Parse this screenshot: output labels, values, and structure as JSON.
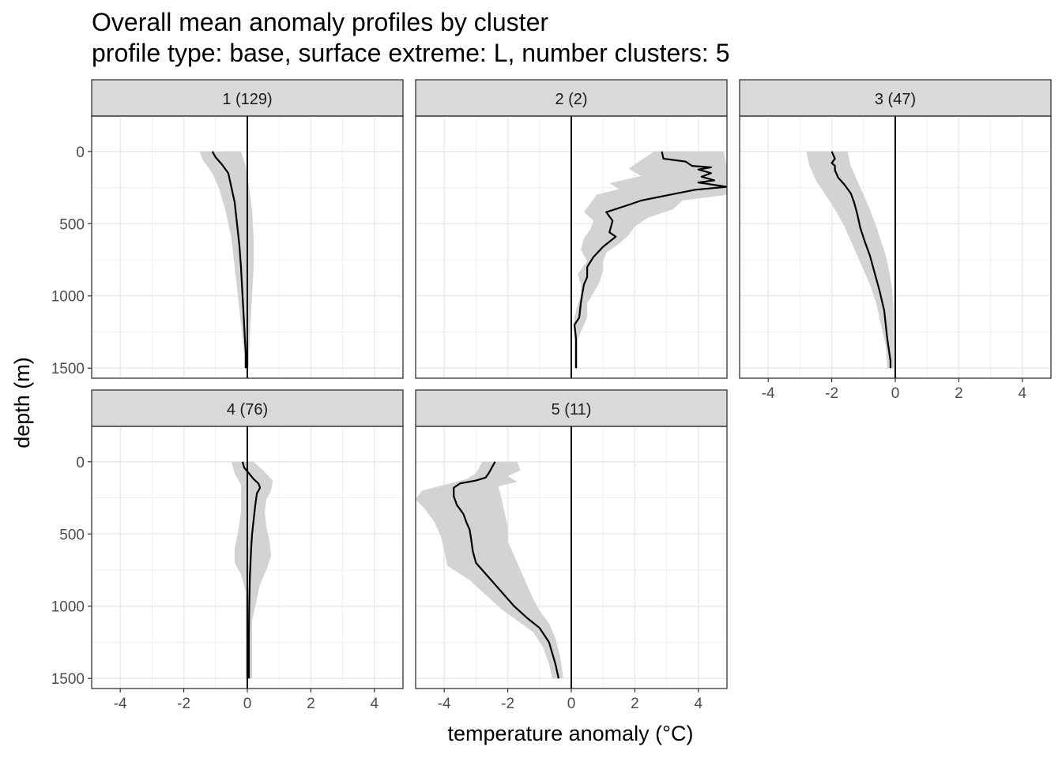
{
  "title_line_1": "Overall mean anomaly profiles by cluster",
  "title_line_2": "profile type: base, surface extreme: L, number clusters: 5",
  "colors": {
    "strip_bg": "#d9d9d9",
    "ribbon": "#d3d3d3",
    "grid": "#ebebeb",
    "line": "#000000",
    "border": "#333333"
  },
  "chart_data": {
    "type": "line",
    "xlabel": "temperature anomaly (°C)",
    "ylabel": "depth (m)",
    "xlim": [
      -4.9,
      4.9
    ],
    "ylim": [
      1570,
      -245
    ],
    "x_ticks": [
      -4,
      -2,
      0,
      2,
      4
    ],
    "x_tick_labels": [
      "-4",
      "-2",
      "0",
      "2",
      "4"
    ],
    "y_ticks": [
      0,
      500,
      1000,
      1500
    ],
    "y_tick_labels": [
      "0",
      "500",
      "1000",
      "1500"
    ],
    "reference_line_x": 0,
    "panels": [
      {
        "label": "1 (129)",
        "mean": [
          [
            -1.1,
            0
          ],
          [
            -1.0,
            40
          ],
          [
            -0.8,
            90
          ],
          [
            -0.6,
            150
          ],
          [
            -0.5,
            250
          ],
          [
            -0.4,
            350
          ],
          [
            -0.35,
            450
          ],
          [
            -0.3,
            550
          ],
          [
            -0.25,
            650
          ],
          [
            -0.2,
            800
          ],
          [
            -0.15,
            1000
          ],
          [
            -0.1,
            1200
          ],
          [
            -0.05,
            1400
          ],
          [
            -0.05,
            1500
          ]
        ],
        "lower": [
          [
            -1.5,
            0
          ],
          [
            -1.4,
            60
          ],
          [
            -1.1,
            150
          ],
          [
            -0.9,
            250
          ],
          [
            -0.7,
            400
          ],
          [
            -0.5,
            600
          ],
          [
            -0.4,
            800
          ],
          [
            -0.3,
            1000
          ],
          [
            -0.2,
            1200
          ],
          [
            -0.1,
            1400
          ],
          [
            -0.1,
            1500
          ]
        ],
        "upper": [
          [
            -0.2,
            0
          ],
          [
            -0.05,
            100
          ],
          [
            0.05,
            250
          ],
          [
            0.15,
            400
          ],
          [
            0.2,
            600
          ],
          [
            0.2,
            800
          ],
          [
            0.15,
            1000
          ],
          [
            0.1,
            1200
          ],
          [
            0.05,
            1400
          ],
          [
            0.05,
            1500
          ]
        ]
      },
      {
        "label": "2 (2)",
        "mean": [
          [
            2.85,
            0
          ],
          [
            2.9,
            50
          ],
          [
            3.6,
            70
          ],
          [
            3.8,
            100
          ],
          [
            4.4,
            110
          ],
          [
            4.0,
            125
          ],
          [
            4.4,
            150
          ],
          [
            4.1,
            175
          ],
          [
            4.5,
            200
          ],
          [
            4.0,
            215
          ],
          [
            4.9,
            245
          ],
          [
            3.9,
            265
          ],
          [
            3.1,
            300
          ],
          [
            2.2,
            340
          ],
          [
            1.8,
            370
          ],
          [
            1.1,
            420
          ],
          [
            1.3,
            480
          ],
          [
            1.2,
            560
          ],
          [
            1.4,
            590
          ],
          [
            1.0,
            660
          ],
          [
            0.7,
            730
          ],
          [
            0.5,
            800
          ],
          [
            0.5,
            870
          ],
          [
            0.4,
            920
          ],
          [
            0.35,
            980
          ],
          [
            0.3,
            1050
          ],
          [
            0.25,
            1150
          ],
          [
            0.1,
            1200
          ],
          [
            0.15,
            1300
          ],
          [
            0.15,
            1500
          ]
        ],
        "lower": [
          [
            2.6,
            0
          ],
          [
            1.8,
            120
          ],
          [
            2.2,
            170
          ],
          [
            1.2,
            220
          ],
          [
            1.5,
            260
          ],
          [
            0.8,
            300
          ],
          [
            0.6,
            360
          ],
          [
            0.4,
            420
          ],
          [
            0.7,
            480
          ],
          [
            0.6,
            540
          ],
          [
            0.4,
            600
          ],
          [
            0.3,
            680
          ],
          [
            0.5,
            760
          ],
          [
            0.2,
            850
          ],
          [
            0.3,
            920
          ],
          [
            0.3,
            1000
          ],
          [
            0.2,
            1060
          ],
          [
            0.1,
            1150
          ],
          [
            0.1,
            1300
          ],
          [
            0.1,
            1500
          ]
        ],
        "upper": [
          [
            4.8,
            0
          ],
          [
            4.9,
            120
          ],
          [
            4.9,
            220
          ],
          [
            4.9,
            300
          ],
          [
            3.5,
            340
          ],
          [
            3.2,
            400
          ],
          [
            2.4,
            460
          ],
          [
            2.0,
            520
          ],
          [
            1.8,
            580
          ],
          [
            1.5,
            640
          ],
          [
            1.1,
            700
          ],
          [
            1.0,
            760
          ],
          [
            1.0,
            820
          ],
          [
            0.9,
            900
          ],
          [
            0.7,
            980
          ],
          [
            0.5,
            1050
          ],
          [
            0.5,
            1150
          ],
          [
            0.2,
            1300
          ],
          [
            0.2,
            1500
          ]
        ]
      },
      {
        "label": "3 (47)",
        "mean": [
          [
            -2.0,
            0
          ],
          [
            -1.9,
            50
          ],
          [
            -2.0,
            80
          ],
          [
            -1.9,
            100
          ],
          [
            -1.9,
            130
          ],
          [
            -1.8,
            180
          ],
          [
            -1.6,
            230
          ],
          [
            -1.4,
            290
          ],
          [
            -1.3,
            350
          ],
          [
            -1.2,
            430
          ],
          [
            -1.1,
            530
          ],
          [
            -0.95,
            630
          ],
          [
            -0.8,
            720
          ],
          [
            -0.7,
            800
          ],
          [
            -0.6,
            880
          ],
          [
            -0.5,
            960
          ],
          [
            -0.35,
            1100
          ],
          [
            -0.25,
            1300
          ],
          [
            -0.15,
            1450
          ],
          [
            -0.15,
            1500
          ]
        ],
        "lower": [
          [
            -2.8,
            0
          ],
          [
            -2.7,
            100
          ],
          [
            -2.5,
            200
          ],
          [
            -2.2,
            300
          ],
          [
            -1.9,
            400
          ],
          [
            -1.6,
            520
          ],
          [
            -1.4,
            620
          ],
          [
            -1.2,
            720
          ],
          [
            -1.0,
            820
          ],
          [
            -0.8,
            920
          ],
          [
            -0.6,
            1050
          ],
          [
            -0.45,
            1200
          ],
          [
            -0.3,
            1350
          ],
          [
            -0.25,
            1500
          ]
        ],
        "upper": [
          [
            -1.5,
            0
          ],
          [
            -1.4,
            100
          ],
          [
            -1.2,
            200
          ],
          [
            -1.0,
            300
          ],
          [
            -0.8,
            400
          ],
          [
            -0.6,
            520
          ],
          [
            -0.45,
            620
          ],
          [
            -0.3,
            720
          ],
          [
            -0.2,
            820
          ],
          [
            -0.1,
            950
          ],
          [
            -0.05,
            1100
          ],
          [
            -0.05,
            1300
          ],
          [
            -0.05,
            1500
          ]
        ]
      },
      {
        "label": "4 (76)",
        "mean": [
          [
            -0.15,
            0
          ],
          [
            -0.1,
            40
          ],
          [
            0.05,
            80
          ],
          [
            0.2,
            120
          ],
          [
            0.35,
            150
          ],
          [
            0.4,
            180
          ],
          [
            0.3,
            220
          ],
          [
            0.25,
            300
          ],
          [
            0.2,
            400
          ],
          [
            0.15,
            500
          ],
          [
            0.12,
            600
          ],
          [
            0.1,
            700
          ],
          [
            0.08,
            800
          ],
          [
            0.06,
            1000
          ],
          [
            0.05,
            1200
          ],
          [
            0.05,
            1400
          ],
          [
            0.05,
            1500
          ]
        ],
        "lower": [
          [
            -0.5,
            0
          ],
          [
            -0.4,
            80
          ],
          [
            -0.2,
            160
          ],
          [
            -0.2,
            250
          ],
          [
            -0.2,
            350
          ],
          [
            -0.3,
            500
          ],
          [
            -0.4,
            600
          ],
          [
            -0.4,
            700
          ],
          [
            -0.2,
            780
          ],
          [
            -0.05,
            900
          ],
          [
            -0.05,
            1100
          ],
          [
            -0.05,
            1300
          ],
          [
            -0.05,
            1500
          ]
        ],
        "upper": [
          [
            0.2,
            0
          ],
          [
            0.5,
            60
          ],
          [
            0.8,
            130
          ],
          [
            0.75,
            200
          ],
          [
            0.6,
            260
          ],
          [
            0.55,
            350
          ],
          [
            0.6,
            450
          ],
          [
            0.7,
            550
          ],
          [
            0.75,
            650
          ],
          [
            0.6,
            750
          ],
          [
            0.4,
            850
          ],
          [
            0.3,
            950
          ],
          [
            0.15,
            1100
          ],
          [
            0.15,
            1300
          ],
          [
            0.15,
            1500
          ]
        ]
      },
      {
        "label": "5 (11)",
        "mean": [
          [
            -2.4,
            0
          ],
          [
            -2.5,
            40
          ],
          [
            -2.6,
            80
          ],
          [
            -2.7,
            110
          ],
          [
            -3.0,
            130
          ],
          [
            -3.5,
            150
          ],
          [
            -3.7,
            180
          ],
          [
            -3.7,
            240
          ],
          [
            -3.6,
            300
          ],
          [
            -3.4,
            360
          ],
          [
            -3.3,
            420
          ],
          [
            -3.2,
            470
          ],
          [
            -3.15,
            540
          ],
          [
            -3.1,
            620
          ],
          [
            -3.0,
            700
          ],
          [
            -2.6,
            800
          ],
          [
            -2.2,
            900
          ],
          [
            -1.8,
            1000
          ],
          [
            -1.4,
            1080
          ],
          [
            -1.0,
            1150
          ],
          [
            -0.7,
            1250
          ],
          [
            -0.5,
            1400
          ],
          [
            -0.4,
            1500
          ]
        ],
        "lower": [
          [
            -2.8,
            0
          ],
          [
            -3.0,
            80
          ],
          [
            -3.3,
            120
          ],
          [
            -4.0,
            160
          ],
          [
            -4.7,
            200
          ],
          [
            -4.9,
            260
          ],
          [
            -4.6,
            330
          ],
          [
            -4.3,
            420
          ],
          [
            -4.1,
            520
          ],
          [
            -4.0,
            620
          ],
          [
            -3.9,
            720
          ],
          [
            -3.2,
            820
          ],
          [
            -2.7,
            920
          ],
          [
            -2.2,
            1020
          ],
          [
            -1.7,
            1100
          ],
          [
            -1.2,
            1180
          ],
          [
            -0.9,
            1280
          ],
          [
            -0.7,
            1400
          ],
          [
            -0.6,
            1500
          ]
        ],
        "upper": [
          [
            -1.7,
            0
          ],
          [
            -1.6,
            60
          ],
          [
            -2.0,
            100
          ],
          [
            -1.7,
            140
          ],
          [
            -2.3,
            170
          ],
          [
            -2.2,
            250
          ],
          [
            -2.1,
            350
          ],
          [
            -2.0,
            450
          ],
          [
            -2.0,
            550
          ],
          [
            -1.8,
            650
          ],
          [
            -1.6,
            750
          ],
          [
            -1.4,
            850
          ],
          [
            -1.2,
            950
          ],
          [
            -1.0,
            1030
          ],
          [
            -0.7,
            1120
          ],
          [
            -0.5,
            1220
          ],
          [
            -0.35,
            1350
          ],
          [
            -0.25,
            1500
          ]
        ]
      }
    ]
  }
}
